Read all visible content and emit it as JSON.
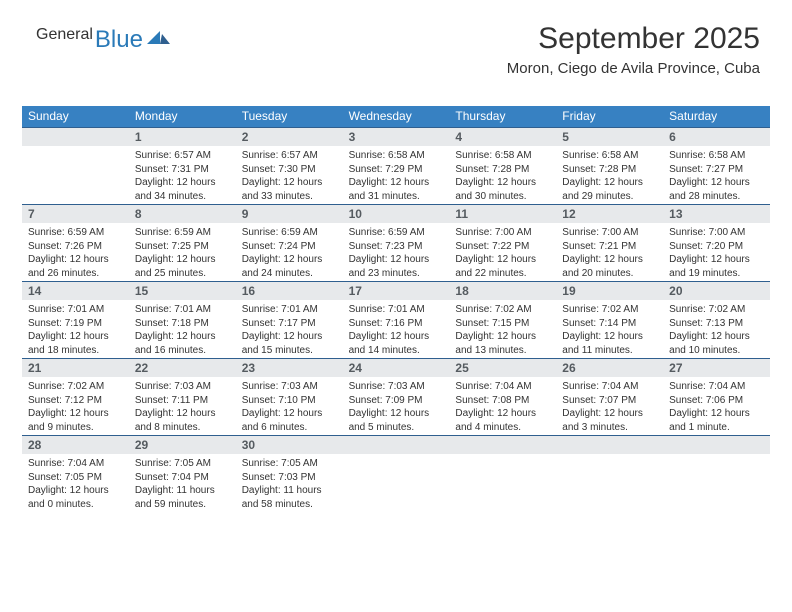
{
  "brand": {
    "general": "General",
    "blue": "Blue"
  },
  "title": "September 2025",
  "subtitle": "Moron, Ciego de Avila Province, Cuba",
  "colors": {
    "header_bg": "#3781c2",
    "header_text": "#ffffff",
    "daynum_bg": "#e7e9eb",
    "daynum_border": "#2f5f8f",
    "text": "#333333",
    "logo_gray": "#555a5f",
    "logo_blue": "#2a7ab8"
  },
  "weekdays": [
    "Sunday",
    "Monday",
    "Tuesday",
    "Wednesday",
    "Thursday",
    "Friday",
    "Saturday"
  ],
  "weeks": [
    {
      "nums": [
        "",
        "1",
        "2",
        "3",
        "4",
        "5",
        "6"
      ],
      "cells": [
        {
          "sunrise": "",
          "sunset": "",
          "day1": "",
          "day2": ""
        },
        {
          "sunrise": "Sunrise: 6:57 AM",
          "sunset": "Sunset: 7:31 PM",
          "day1": "Daylight: 12 hours",
          "day2": "and 34 minutes."
        },
        {
          "sunrise": "Sunrise: 6:57 AM",
          "sunset": "Sunset: 7:30 PM",
          "day1": "Daylight: 12 hours",
          "day2": "and 33 minutes."
        },
        {
          "sunrise": "Sunrise: 6:58 AM",
          "sunset": "Sunset: 7:29 PM",
          "day1": "Daylight: 12 hours",
          "day2": "and 31 minutes."
        },
        {
          "sunrise": "Sunrise: 6:58 AM",
          "sunset": "Sunset: 7:28 PM",
          "day1": "Daylight: 12 hours",
          "day2": "and 30 minutes."
        },
        {
          "sunrise": "Sunrise: 6:58 AM",
          "sunset": "Sunset: 7:28 PM",
          "day1": "Daylight: 12 hours",
          "day2": "and 29 minutes."
        },
        {
          "sunrise": "Sunrise: 6:58 AM",
          "sunset": "Sunset: 7:27 PM",
          "day1": "Daylight: 12 hours",
          "day2": "and 28 minutes."
        }
      ]
    },
    {
      "nums": [
        "7",
        "8",
        "9",
        "10",
        "11",
        "12",
        "13"
      ],
      "cells": [
        {
          "sunrise": "Sunrise: 6:59 AM",
          "sunset": "Sunset: 7:26 PM",
          "day1": "Daylight: 12 hours",
          "day2": "and 26 minutes."
        },
        {
          "sunrise": "Sunrise: 6:59 AM",
          "sunset": "Sunset: 7:25 PM",
          "day1": "Daylight: 12 hours",
          "day2": "and 25 minutes."
        },
        {
          "sunrise": "Sunrise: 6:59 AM",
          "sunset": "Sunset: 7:24 PM",
          "day1": "Daylight: 12 hours",
          "day2": "and 24 minutes."
        },
        {
          "sunrise": "Sunrise: 6:59 AM",
          "sunset": "Sunset: 7:23 PM",
          "day1": "Daylight: 12 hours",
          "day2": "and 23 minutes."
        },
        {
          "sunrise": "Sunrise: 7:00 AM",
          "sunset": "Sunset: 7:22 PM",
          "day1": "Daylight: 12 hours",
          "day2": "and 22 minutes."
        },
        {
          "sunrise": "Sunrise: 7:00 AM",
          "sunset": "Sunset: 7:21 PM",
          "day1": "Daylight: 12 hours",
          "day2": "and 20 minutes."
        },
        {
          "sunrise": "Sunrise: 7:00 AM",
          "sunset": "Sunset: 7:20 PM",
          "day1": "Daylight: 12 hours",
          "day2": "and 19 minutes."
        }
      ]
    },
    {
      "nums": [
        "14",
        "15",
        "16",
        "17",
        "18",
        "19",
        "20"
      ],
      "cells": [
        {
          "sunrise": "Sunrise: 7:01 AM",
          "sunset": "Sunset: 7:19 PM",
          "day1": "Daylight: 12 hours",
          "day2": "and 18 minutes."
        },
        {
          "sunrise": "Sunrise: 7:01 AM",
          "sunset": "Sunset: 7:18 PM",
          "day1": "Daylight: 12 hours",
          "day2": "and 16 minutes."
        },
        {
          "sunrise": "Sunrise: 7:01 AM",
          "sunset": "Sunset: 7:17 PM",
          "day1": "Daylight: 12 hours",
          "day2": "and 15 minutes."
        },
        {
          "sunrise": "Sunrise: 7:01 AM",
          "sunset": "Sunset: 7:16 PM",
          "day1": "Daylight: 12 hours",
          "day2": "and 14 minutes."
        },
        {
          "sunrise": "Sunrise: 7:02 AM",
          "sunset": "Sunset: 7:15 PM",
          "day1": "Daylight: 12 hours",
          "day2": "and 13 minutes."
        },
        {
          "sunrise": "Sunrise: 7:02 AM",
          "sunset": "Sunset: 7:14 PM",
          "day1": "Daylight: 12 hours",
          "day2": "and 11 minutes."
        },
        {
          "sunrise": "Sunrise: 7:02 AM",
          "sunset": "Sunset: 7:13 PM",
          "day1": "Daylight: 12 hours",
          "day2": "and 10 minutes."
        }
      ]
    },
    {
      "nums": [
        "21",
        "22",
        "23",
        "24",
        "25",
        "26",
        "27"
      ],
      "cells": [
        {
          "sunrise": "Sunrise: 7:02 AM",
          "sunset": "Sunset: 7:12 PM",
          "day1": "Daylight: 12 hours",
          "day2": "and 9 minutes."
        },
        {
          "sunrise": "Sunrise: 7:03 AM",
          "sunset": "Sunset: 7:11 PM",
          "day1": "Daylight: 12 hours",
          "day2": "and 8 minutes."
        },
        {
          "sunrise": "Sunrise: 7:03 AM",
          "sunset": "Sunset: 7:10 PM",
          "day1": "Daylight: 12 hours",
          "day2": "and 6 minutes."
        },
        {
          "sunrise": "Sunrise: 7:03 AM",
          "sunset": "Sunset: 7:09 PM",
          "day1": "Daylight: 12 hours",
          "day2": "and 5 minutes."
        },
        {
          "sunrise": "Sunrise: 7:04 AM",
          "sunset": "Sunset: 7:08 PM",
          "day1": "Daylight: 12 hours",
          "day2": "and 4 minutes."
        },
        {
          "sunrise": "Sunrise: 7:04 AM",
          "sunset": "Sunset: 7:07 PM",
          "day1": "Daylight: 12 hours",
          "day2": "and 3 minutes."
        },
        {
          "sunrise": "Sunrise: 7:04 AM",
          "sunset": "Sunset: 7:06 PM",
          "day1": "Daylight: 12 hours",
          "day2": "and 1 minute."
        }
      ]
    },
    {
      "nums": [
        "28",
        "29",
        "30",
        "",
        "",
        "",
        ""
      ],
      "cells": [
        {
          "sunrise": "Sunrise: 7:04 AM",
          "sunset": "Sunset: 7:05 PM",
          "day1": "Daylight: 12 hours",
          "day2": "and 0 minutes."
        },
        {
          "sunrise": "Sunrise: 7:05 AM",
          "sunset": "Sunset: 7:04 PM",
          "day1": "Daylight: 11 hours",
          "day2": "and 59 minutes."
        },
        {
          "sunrise": "Sunrise: 7:05 AM",
          "sunset": "Sunset: 7:03 PM",
          "day1": "Daylight: 11 hours",
          "day2": "and 58 minutes."
        },
        {
          "sunrise": "",
          "sunset": "",
          "day1": "",
          "day2": ""
        },
        {
          "sunrise": "",
          "sunset": "",
          "day1": "",
          "day2": ""
        },
        {
          "sunrise": "",
          "sunset": "",
          "day1": "",
          "day2": ""
        },
        {
          "sunrise": "",
          "sunset": "",
          "day1": "",
          "day2": ""
        }
      ]
    }
  ]
}
